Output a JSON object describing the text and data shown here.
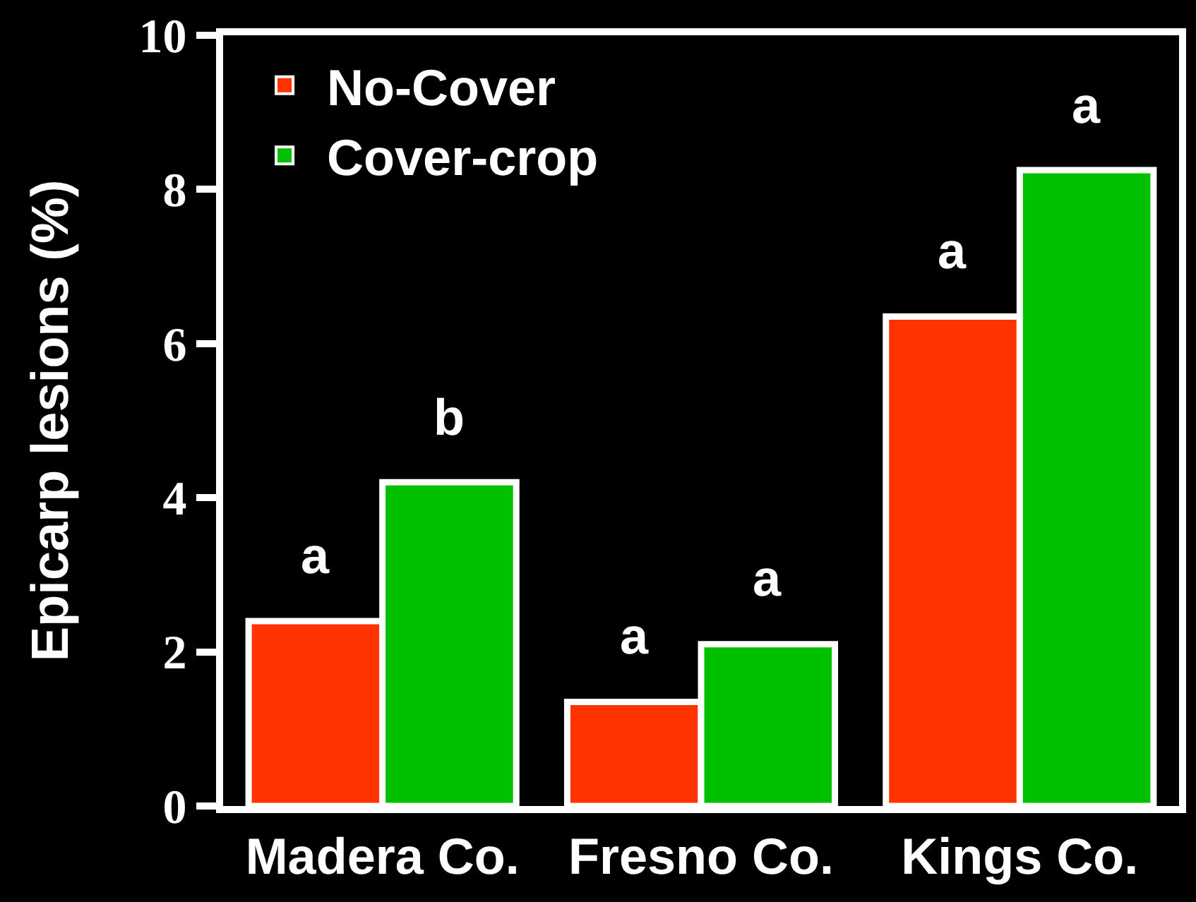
{
  "chart_data": {
    "type": "bar",
    "ylabel": "Epicarp lesions (%)",
    "categories": [
      "Madera Co.",
      "Fresno Co.",
      "Kings Co."
    ],
    "series": [
      {
        "name": "No-Cover",
        "color": "#ff3300",
        "values": [
          2.4,
          1.35,
          6.35
        ],
        "value_labels": [
          "a",
          "a",
          "a"
        ]
      },
      {
        "name": "Cover-crop",
        "color": "#00c000",
        "values": [
          4.2,
          2.1,
          8.25
        ],
        "value_labels": [
          "b",
          "a",
          "a"
        ]
      }
    ],
    "ylim": [
      0,
      10
    ],
    "yticks": [
      0,
      2,
      4,
      6,
      8,
      10
    ],
    "legend": "top left",
    "grid": false
  }
}
